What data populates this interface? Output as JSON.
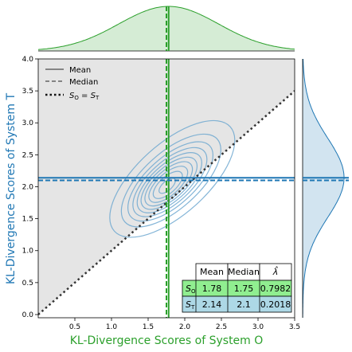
{
  "chart_data": {
    "type": "contour",
    "xlabel": "KL-Divergence Scores of System O",
    "ylabel": "KL-Divergence Scores of System T",
    "xlim": [
      0.0,
      3.5
    ],
    "ylim": [
      -0.05,
      4.0
    ],
    "x_ticks": [
      "0.5",
      "1.0",
      "1.5",
      "2.0",
      "2.5",
      "3.0",
      "3.5"
    ],
    "y_ticks": [
      "0.0",
      "0.5",
      "1.0",
      "1.5",
      "2.0",
      "2.5",
      "3.0",
      "3.5",
      "4.0"
    ],
    "grid": false,
    "legend_position": "upper-left",
    "legend": [
      {
        "label": "Mean",
        "style": "solid"
      },
      {
        "label": "Median",
        "style": "dashed"
      },
      {
        "label": "S_O = S_T",
        "style": "dotted"
      }
    ],
    "colors": {
      "system_o": "#2ca02c",
      "system_t": "#1f77b4",
      "contour": "#6fa8d0",
      "shade": "#e5e5e5",
      "diagonal": "#333333",
      "table_o_row": "#90ee90",
      "table_t_row": "#add8e6"
    },
    "kde_center": {
      "x": 1.75,
      "y": 2.0
    },
    "contour_levels": 10,
    "stats": {
      "system_o": {
        "mean": 1.78,
        "median": 1.75
      },
      "system_t": {
        "mean": 2.14,
        "median": 2.1
      }
    },
    "marginal_x": {
      "mean": 1.78,
      "sd": 0.68
    },
    "marginal_y": {
      "mean": 2.14,
      "sd": 0.62
    },
    "table": {
      "headers": [
        "Mean",
        "Median",
        "λ̂"
      ],
      "rows": [
        {
          "label": "S_O",
          "mean": "1.78",
          "median": "1.75",
          "lambda": "0.7982"
        },
        {
          "label": "S_T",
          "mean": "2.14",
          "median": "2.1",
          "lambda": "0.2018"
        }
      ]
    }
  }
}
